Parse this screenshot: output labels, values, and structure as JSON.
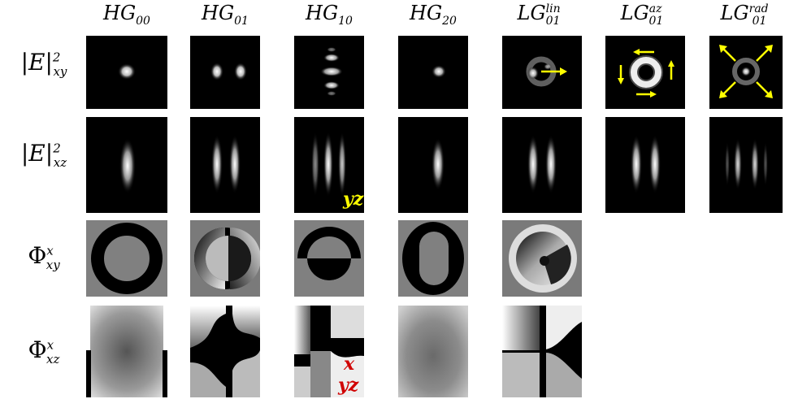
{
  "columns": [
    {
      "base": "HG",
      "sub": "00",
      "sup": ""
    },
    {
      "base": "HG",
      "sub": "01",
      "sup": ""
    },
    {
      "base": "HG",
      "sub": "10",
      "sup": ""
    },
    {
      "base": "HG",
      "sub": "20",
      "sup": ""
    },
    {
      "base": "LG",
      "sub": "01",
      "sup": "lin"
    },
    {
      "base": "LG",
      "sub": "01",
      "sup": "az"
    },
    {
      "base": "LG",
      "sub": "01",
      "sup": "rad"
    }
  ],
  "rows": [
    {
      "main": "|E|",
      "sub": "xy",
      "sup": "2"
    },
    {
      "main": "|E|",
      "sub": "xz",
      "sup": "2"
    },
    {
      "main": "Φ",
      "sub": "xy",
      "sup": "x"
    },
    {
      "main": "Φ",
      "sub": "xz",
      "sup": "x"
    }
  ],
  "overlays": {
    "yz_intensity": "yz",
    "x_phase": "x",
    "yz_phase": "yz"
  },
  "colors": {
    "arrow": "#ffff00",
    "yz_label": "#ffff00",
    "phase_label": "#d00000"
  }
}
